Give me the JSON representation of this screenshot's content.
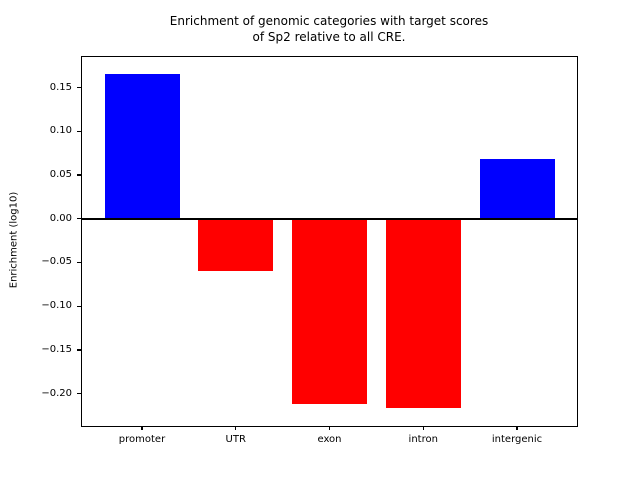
{
  "figure": {
    "background": "#ffffff",
    "border_color": "#000000"
  },
  "chart_data": {
    "type": "bar",
    "title": "Enrichment of genomic categories with target scores\nof Sp2 relative to all CRE.",
    "xlabel": "",
    "ylabel": "Enrichment (log10)",
    "categories": [
      "promoter",
      "UTR",
      "exon",
      "intron",
      "intergenic"
    ],
    "values": [
      0.165,
      -0.06,
      -0.212,
      -0.217,
      0.068
    ],
    "bar_colors": [
      "#0000ff",
      "#ff0000",
      "#ff0000",
      "#ff0000",
      "#0000ff"
    ],
    "positive_color": "#0000ff",
    "negative_color": "#ff0000",
    "ylim": [
      -0.237,
      0.185
    ],
    "yticks": [
      {
        "value": 0.15,
        "label": "0.15"
      },
      {
        "value": 0.1,
        "label": "0.10"
      },
      {
        "value": 0.05,
        "label": "0.05"
      },
      {
        "value": 0.0,
        "label": "0.00"
      },
      {
        "value": -0.05,
        "label": "−0.05"
      },
      {
        "value": -0.1,
        "label": "−0.10"
      },
      {
        "value": -0.15,
        "label": "−0.15"
      },
      {
        "value": -0.2,
        "label": "−0.20"
      }
    ],
    "zero_line": true,
    "grid": false,
    "legend_position": "none"
  }
}
